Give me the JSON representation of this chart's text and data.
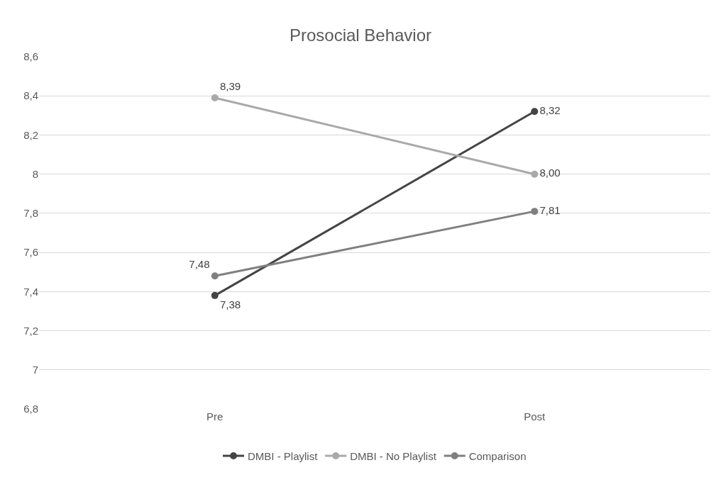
{
  "chart_data": {
    "type": "line",
    "title": "Prosocial Behavior",
    "categories": [
      "Pre",
      "Post"
    ],
    "series": [
      {
        "name": "DMBI - Playlist",
        "color": "#444444",
        "values": [
          7.38,
          8.32
        ],
        "value_labels": [
          "7,38",
          "8,32"
        ]
      },
      {
        "name": "DMBI - No Playlist",
        "color": "#a9a9a9",
        "values": [
          8.39,
          8.0
        ],
        "value_labels": [
          "8,39",
          "8,00"
        ]
      },
      {
        "name": "Comparison",
        "color": "#7f7f7f",
        "values": [
          7.48,
          7.81
        ],
        "value_labels": [
          "7,48",
          "7,81"
        ]
      }
    ],
    "ylim": [
      6.8,
      8.6
    ],
    "yticks": [
      {
        "value": 6.8,
        "label": "6,8"
      },
      7,
      {
        "value": 7.2,
        "label": "7,2"
      },
      {
        "value": 7.4,
        "label": "7,4"
      },
      {
        "value": 7.6,
        "label": "7,6"
      },
      {
        "value": 7.8,
        "label": "7,8"
      },
      8,
      {
        "value": 8.2,
        "label": "8,2"
      },
      {
        "value": 8.4,
        "label": "8,4"
      },
      {
        "value": 8.6,
        "label": "8,6"
      }
    ],
    "grid": "y",
    "legend": "bottom",
    "marker": "circle",
    "line_style": "solid"
  }
}
